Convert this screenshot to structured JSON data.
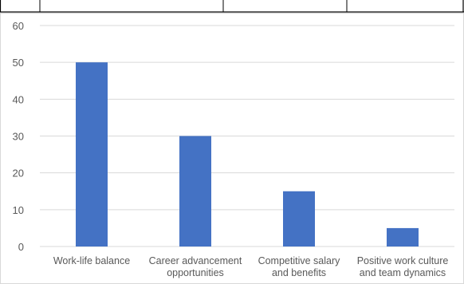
{
  "chart_data": {
    "type": "bar",
    "categories": [
      [
        "Work-life balance"
      ],
      [
        "Career advancement",
        "opportunities"
      ],
      [
        "Competitive salary",
        "and benefits"
      ],
      [
        "Positive work culture",
        "and team dynamics"
      ]
    ],
    "values": [
      50,
      30,
      15,
      5
    ],
    "ylim": [
      0,
      60
    ],
    "yticks": [
      0,
      10,
      20,
      30,
      40,
      50,
      60
    ],
    "grid": true,
    "legend": "none",
    "bar_color": "#4472C4",
    "grid_color": "#D9D9D9"
  }
}
